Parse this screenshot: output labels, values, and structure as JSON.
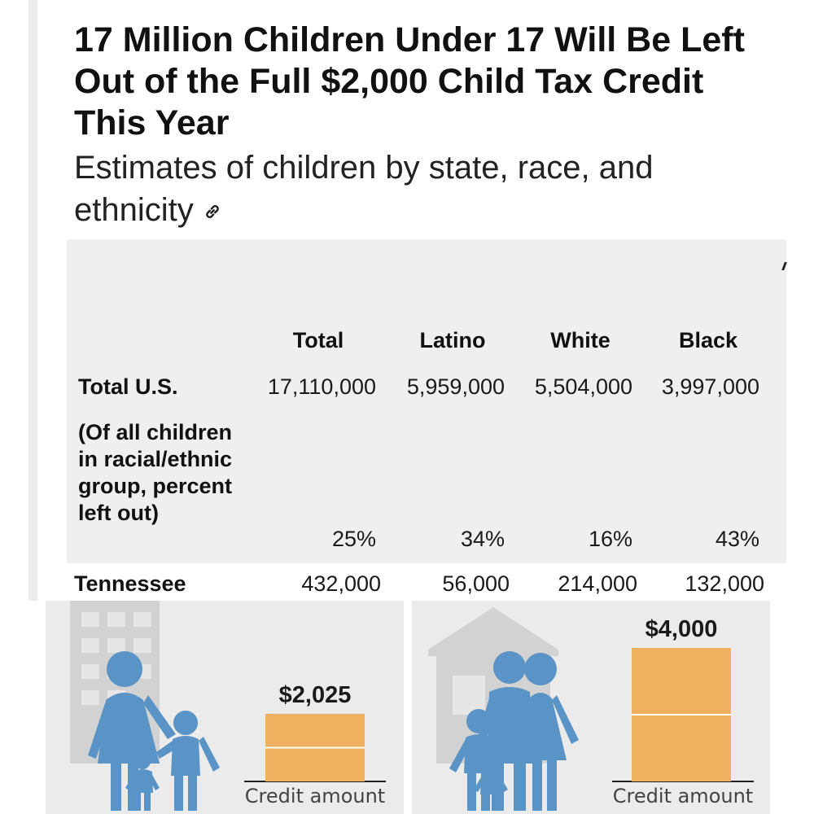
{
  "header": {
    "title": "17 Million Children Under 17 Will Be Left Out of the Full $2,000 Child Tax Credit This Year",
    "subtitle": "Estimates of children by state, race, and ethnicity",
    "link_icon": "link-icon"
  },
  "chart_data": [
    {
      "type": "table",
      "columns": [
        "Total",
        "Latino",
        "White",
        "Black"
      ],
      "rows": [
        {
          "label": "Total U.S.",
          "values": [
            "17,110,000",
            "5,959,000",
            "5,504,000",
            "3,997,000"
          ]
        },
        {
          "label": "(Of all children in racial/ethnic group, percent left out)",
          "values": [
            "25%",
            "34%",
            "16%",
            "43%"
          ]
        },
        {
          "label": "Tennessee",
          "values": [
            "432,000",
            "56,000",
            "214,000",
            "132,000"
          ]
        }
      ]
    },
    {
      "type": "bar",
      "categories": [
        "Credit amount"
      ],
      "values": [
        2025
      ],
      "value_label": "$2,025",
      "xlabel": "Credit amount",
      "ylim": [
        0,
        4000
      ],
      "colors": {
        "bar": "#efb15f",
        "divider": "#ffffff",
        "figure": "#5a93c6",
        "building": "#d2d2d2"
      }
    },
    {
      "type": "bar",
      "categories": [
        "Credit amount"
      ],
      "values": [
        4000
      ],
      "value_label": "$4,000",
      "xlabel": "Credit amount",
      "ylim": [
        0,
        4000
      ],
      "colors": {
        "bar": "#efb15f",
        "divider": "#ffffff",
        "figure": "#5a93c6",
        "building": "#d2d2d2"
      }
    }
  ]
}
